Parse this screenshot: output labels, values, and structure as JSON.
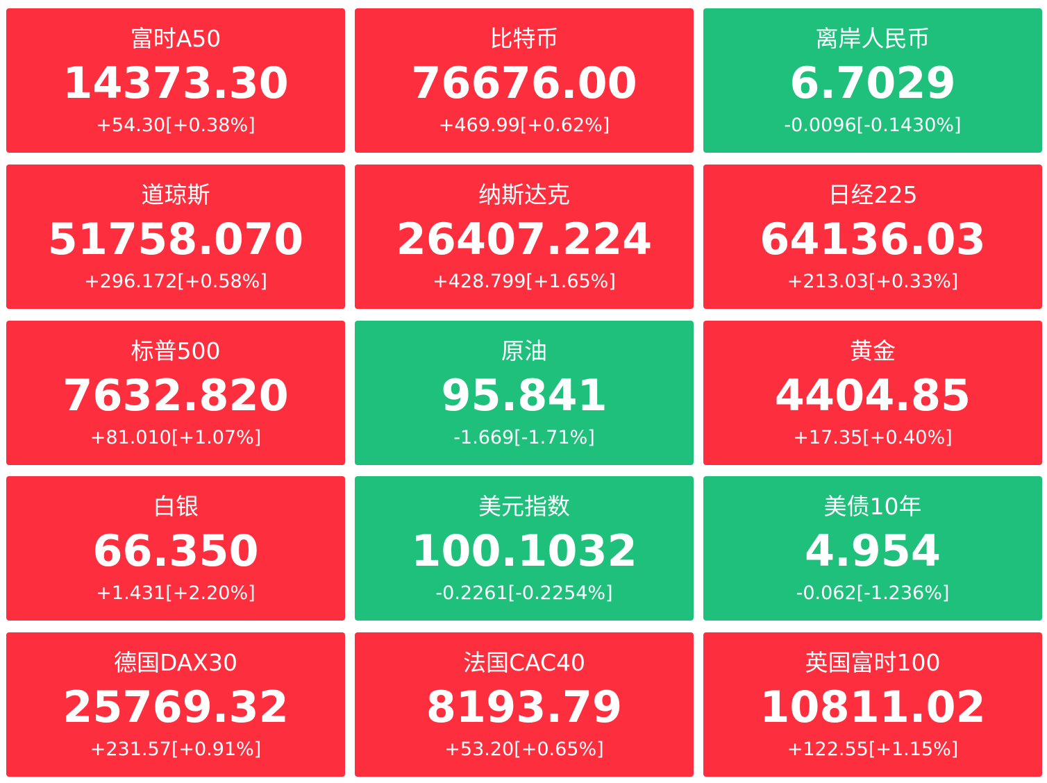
{
  "tiles": [
    {
      "name": "富时A50",
      "price": "14373.30",
      "change": "+54.30[+0.38%]",
      "color": "#fd2f3f"
    },
    {
      "name": "比特币",
      "price": "76676.00",
      "change": "+469.99[+0.62%]",
      "color": "#fd2f3f"
    },
    {
      "name": "离岸人民币",
      "price": "6.7029",
      "change": "-0.0096[-0.1430%]",
      "color": "#1ec07c"
    },
    {
      "name": "道琼斯",
      "price": "51758.070",
      "change": "+296.172[+0.58%]",
      "color": "#fd2f3f"
    },
    {
      "name": "纳斯达克",
      "price": "26407.224",
      "change": "+428.799[+1.65%]",
      "color": "#fd2f3f"
    },
    {
      "name": "日经225",
      "price": "64136.03",
      "change": "+213.03[+0.33%]",
      "color": "#fd2f3f"
    },
    {
      "name": "标普500",
      "price": "7632.820",
      "change": "+81.010[+1.07%]",
      "color": "#fd2f3f"
    },
    {
      "name": "原油",
      "price": "95.841",
      "change": "-1.669[-1.71%]",
      "color": "#1ec07c"
    },
    {
      "name": "黄金",
      "price": "4404.85",
      "change": "+17.35[+0.40%]",
      "color": "#fd2f3f"
    },
    {
      "name": "白银",
      "price": "66.350",
      "change": "+1.431[+2.20%]",
      "color": "#fd2f3f"
    },
    {
      "name": "美元指数",
      "price": "100.1032",
      "change": "-0.2261[-0.2254%]",
      "color": "#1ec07c"
    },
    {
      "name": "美债10年",
      "price": "4.954",
      "change": "-0.062[-1.236%]",
      "color": "#1ec07c"
    },
    {
      "name": "德国DAX30",
      "price": "25769.32",
      "change": "+231.57[+0.91%]",
      "color": "#fd2f3f"
    },
    {
      "name": "法国CAC40",
      "price": "8193.79",
      "change": "+53.20[+0.65%]",
      "color": "#fd2f3f"
    },
    {
      "name": "英国富时100",
      "price": "10811.02",
      "change": "+122.55[+1.15%]",
      "color": "#fd2f3f"
    }
  ]
}
